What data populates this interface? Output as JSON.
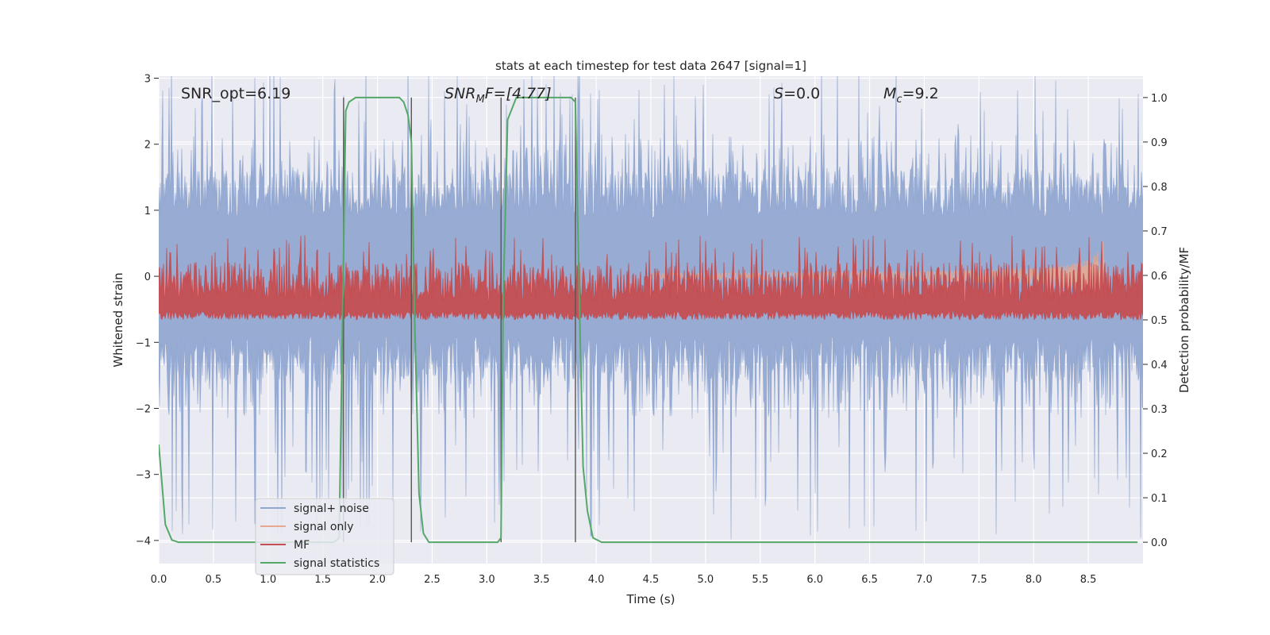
{
  "chart_data": {
    "type": "line",
    "title": "stats at each timestep for test data 2647 [signal=1]",
    "xlabel": "Time (s)",
    "ylabel": "Whitened strain",
    "y2label": "Detection probability/MF",
    "xlim": [
      0.0,
      9.0
    ],
    "ylim": [
      -4.35,
      3.03
    ],
    "y2lim": [
      -0.048,
      1.048
    ],
    "xticks": [
      "0.0",
      "0.5",
      "1.0",
      "1.5",
      "2.0",
      "2.5",
      "3.0",
      "3.5",
      "4.0",
      "4.5",
      "5.0",
      "5.5",
      "6.0",
      "6.5",
      "7.0",
      "7.5",
      "8.0",
      "8.5"
    ],
    "yticks": [
      "−4",
      "−3",
      "−2",
      "−1",
      "0",
      "1",
      "2",
      "3"
    ],
    "y2ticks": [
      "0.0",
      "0.1",
      "0.2",
      "0.3",
      "0.4",
      "0.5",
      "0.6",
      "0.7",
      "0.8",
      "0.9",
      "1.0"
    ],
    "grid": true,
    "legend_position": "lower-left",
    "annotations": {
      "snr_opt": "SNR_opt=6.19",
      "snr_mf_main": "SNR",
      "snr_mf_sub": "M",
      "snr_mf_rest": "F=[4.77]",
      "s_var": "S",
      "s_rest": "=0.0",
      "mc_var": "M",
      "mc_sub": "c",
      "mc_rest": "=9.2"
    },
    "vertical_lines": [
      1.69,
      2.31,
      3.13,
      3.81
    ],
    "series": [
      {
        "name": "signal+ noise",
        "axis": "left",
        "color": "#92a8d1",
        "style": "noise-band",
        "envelope": {
          "upper_mean": 1.6,
          "upper_peak": 3.3,
          "lower_mean": -1.6,
          "lower_peak": -4.0
        }
      },
      {
        "name": "signal only",
        "axis": "left",
        "color": "#e6a88f",
        "style": "chirp",
        "chirp_start": 4.5,
        "chirp_end": 8.65,
        "chirp_peak_amplitude": 0.7
      },
      {
        "name": "MF",
        "axis": "right",
        "color": "#c44e52",
        "style": "noise-band",
        "envelope": {
          "baseline": 0.5,
          "upper_mean": 0.6,
          "upper_peak": 0.69
        }
      },
      {
        "name": "signal statistics",
        "axis": "right",
        "color": "#55a868",
        "style": "line",
        "x": [
          0.0,
          0.06,
          0.12,
          0.18,
          0.25,
          1.6,
          1.65,
          1.68,
          1.71,
          1.74,
          1.8,
          2.2,
          2.24,
          2.28,
          2.31,
          2.34,
          2.38,
          2.42,
          2.47,
          3.1,
          3.13,
          3.15,
          3.19,
          3.27,
          3.77,
          3.81,
          3.85,
          3.88,
          3.92,
          3.97,
          4.05,
          8.95
        ],
        "values": [
          0.22,
          0.04,
          0.005,
          0.0,
          0.0,
          0.0,
          0.01,
          0.5,
          0.97,
          0.99,
          1.0,
          1.0,
          0.99,
          0.96,
          0.9,
          0.5,
          0.11,
          0.02,
          0.0,
          0.0,
          0.01,
          0.55,
          0.95,
          1.0,
          1.0,
          0.99,
          0.5,
          0.17,
          0.07,
          0.01,
          0.0,
          0.0
        ]
      }
    ]
  }
}
